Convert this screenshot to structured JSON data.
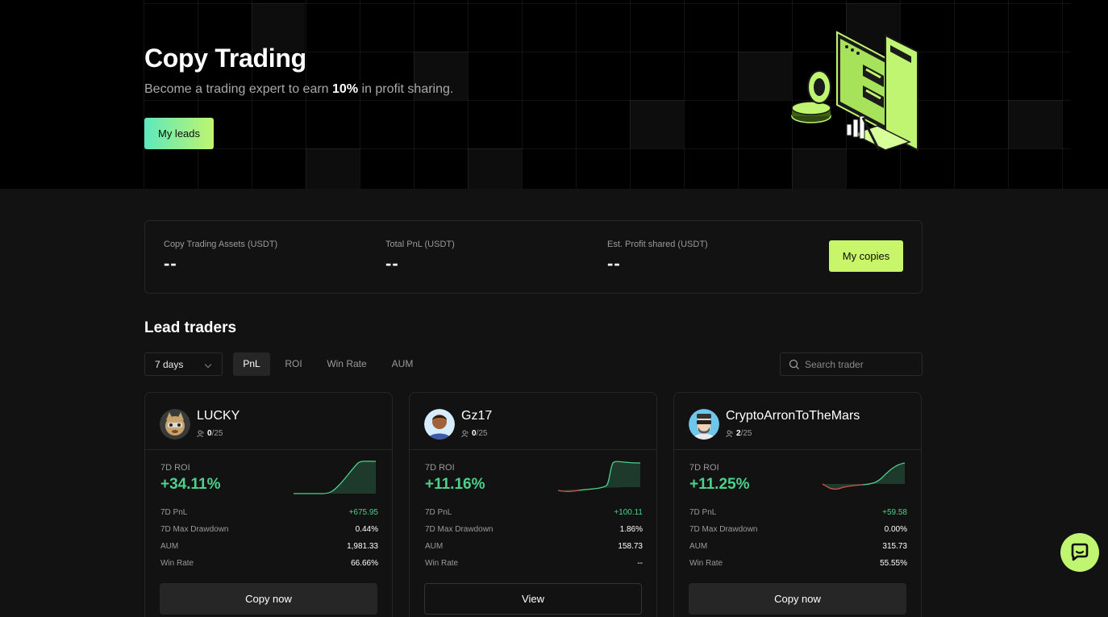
{
  "hero": {
    "title": "Copy Trading",
    "subtitle_before": "Become a trading expert to earn ",
    "subtitle_highlight": "10%",
    "subtitle_after": " in profit sharing.",
    "my_leads_label": "My leads",
    "accent_gradient": [
      "#5ee8bd",
      "#bff570"
    ]
  },
  "stats": {
    "items": [
      {
        "label": "Copy Trading Assets (USDT)",
        "value": "--"
      },
      {
        "label": "Total PnL (USDT)",
        "value": "--"
      },
      {
        "label": "Est. Profit shared (USDT)",
        "value": "--"
      }
    ],
    "my_copies_label": "My copies",
    "accent": "#c8f56a"
  },
  "lead_traders": {
    "title": "Lead traders",
    "period": "7 days",
    "tabs": [
      "PnL",
      "ROI",
      "Win Rate",
      "AUM"
    ],
    "active_tab": "PnL",
    "search_placeholder": "Search trader"
  },
  "traders": [
    {
      "name": "LUCKY",
      "followers_current": "0",
      "followers_max": "/25",
      "roi_label": "7D ROI",
      "roi": "+34.11%",
      "metrics": [
        {
          "k": "7D PnL",
          "v": "+675.95"
        },
        {
          "k": "7D Max Drawdown",
          "v": "0.44%"
        },
        {
          "k": "AUM",
          "v": "1,981.33"
        },
        {
          "k": "Win Rate",
          "v": "66.66%"
        }
      ],
      "button": "Copy now"
    },
    {
      "name": "Gz17",
      "followers_current": "0",
      "followers_max": "/25",
      "roi_label": "7D ROI",
      "roi": "+11.16%",
      "metrics": [
        {
          "k": "7D PnL",
          "v": "+100.11"
        },
        {
          "k": "7D Max Drawdown",
          "v": "1.86%"
        },
        {
          "k": "AUM",
          "v": "158.73"
        },
        {
          "k": "Win Rate",
          "v": "--"
        }
      ],
      "button": "View"
    },
    {
      "name": "CryptoArronToTheMars",
      "followers_current": "2",
      "followers_max": "/25",
      "roi_label": "7D ROI",
      "roi": "+11.25%",
      "metrics": [
        {
          "k": "7D PnL",
          "v": "+59.58"
        },
        {
          "k": "7D Max Drawdown",
          "v": "0.00%"
        },
        {
          "k": "AUM",
          "v": "315.73"
        },
        {
          "k": "Win Rate",
          "v": "55.55%"
        }
      ],
      "button": "Copy now"
    }
  ],
  "colors": {
    "positive": "#4bd18c",
    "negative": "#e0504a",
    "surface": "#121212",
    "border": "#262626"
  }
}
